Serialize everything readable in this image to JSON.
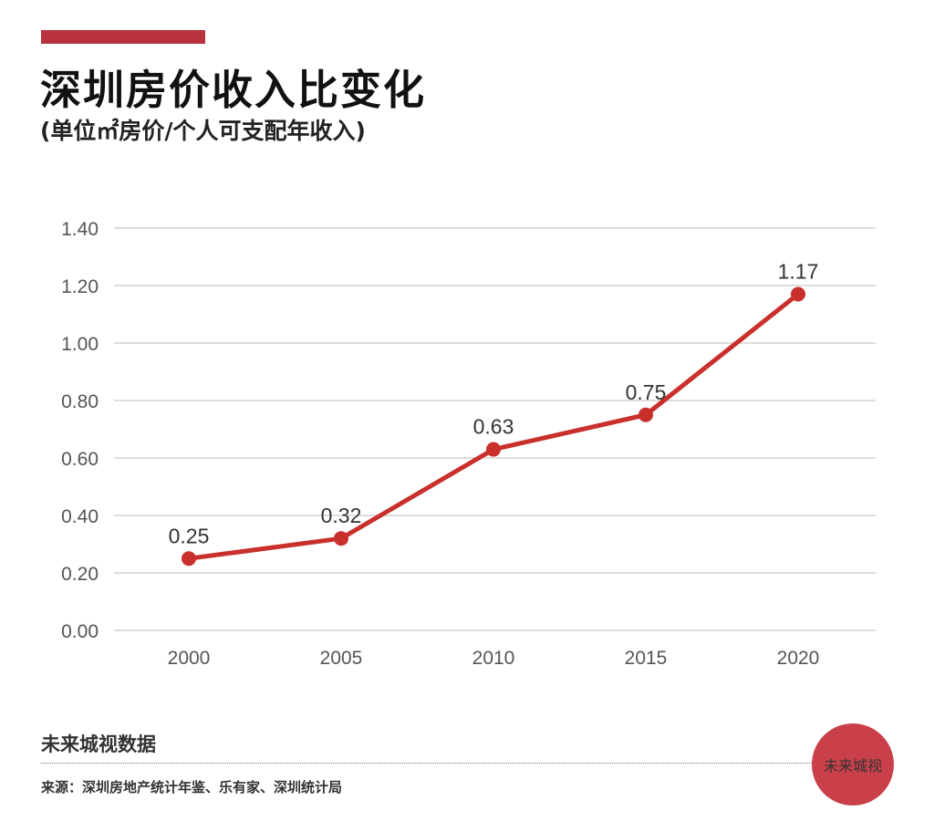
{
  "header": {
    "title": "深圳房价收入比变化",
    "subtitle": "(单位㎡房价/个人可支配年收入)"
  },
  "footer": {
    "brand": "未来城视数据",
    "source": "来源：深圳房地产统计年鉴、乐有家、深圳统计局",
    "logo_text": "未来城视"
  },
  "colors": {
    "accent": "#b9333e",
    "line": "#c9302c",
    "grid": "#dddddd"
  },
  "chart_data": {
    "type": "line",
    "categories": [
      "2000",
      "2005",
      "2010",
      "2015",
      "2020"
    ],
    "values": [
      0.25,
      0.32,
      0.63,
      0.75,
      1.17
    ],
    "data_labels": [
      "0.25",
      "0.32",
      "0.63",
      "0.75",
      "1.17"
    ],
    "ylim": [
      0,
      1.4
    ],
    "yticks": [
      "0.00",
      "0.20",
      "0.40",
      "0.60",
      "0.80",
      "1.00",
      "1.20",
      "1.40"
    ],
    "grid": true,
    "xlabel": "",
    "ylabel": ""
  }
}
